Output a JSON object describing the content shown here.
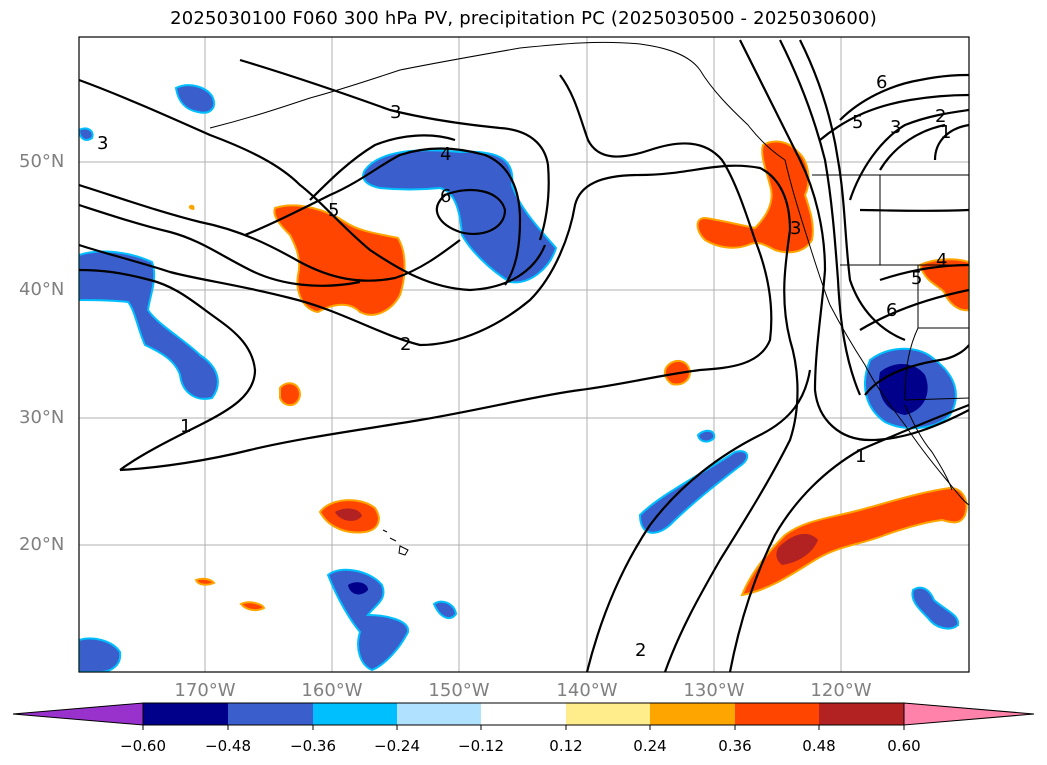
{
  "title": "2025030100 F060 300 hPa PV, precipitation PC (2025030500 - 2025030600)",
  "lat_labels": [
    "50°N",
    "40°N",
    "30°N",
    "20°N"
  ],
  "lon_labels": [
    "170°W",
    "160°W",
    "150°W",
    "140°W",
    "130°W",
    "120°W"
  ],
  "contour_labels": [
    "3",
    "3",
    "4",
    "5",
    "6",
    "2",
    "1",
    "6",
    "5",
    "3",
    "2",
    "1",
    "4",
    "5",
    "6",
    "3",
    "1",
    "2"
  ],
  "colorbar": {
    "ticks": [
      "−0.60",
      "−0.48",
      "−0.36",
      "−0.24",
      "−0.12",
      "0.12",
      "0.24",
      "0.36",
      "0.48",
      "0.60"
    ],
    "colors": [
      "#9932cc",
      "#00008b",
      "#3a5fcd",
      "#00bfff",
      "#b0e2ff",
      "#ffffff",
      "#ffec8b",
      "#ffa500",
      "#ff4500",
      "#b22222",
      "#ff82ab"
    ]
  }
}
